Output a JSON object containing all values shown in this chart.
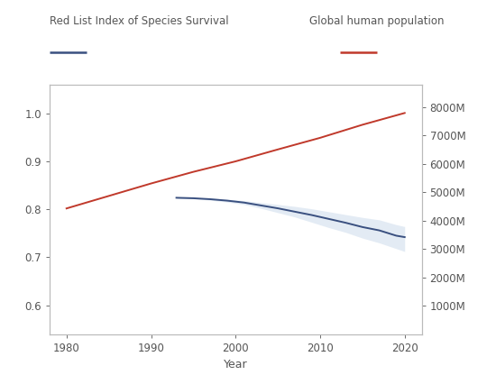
{
  "title_left": "Red List Index of Species Survival",
  "title_right": "Global human population",
  "xlabel": "Year",
  "left_color": "#3a5080",
  "right_color": "#c0392b",
  "ci_color": "#c8d8ea",
  "background_color": "#ffffff",
  "ylim_left": [
    0.54,
    1.06
  ],
  "ylim_right": [
    0,
    8800
  ],
  "xlim": [
    1978,
    2022
  ],
  "yticks_left": [
    0.6,
    0.7,
    0.8,
    0.9,
    1.0
  ],
  "yticks_right": [
    1000,
    2000,
    3000,
    4000,
    5000,
    6000,
    7000,
    8000
  ],
  "xticks": [
    1980,
    1990,
    2000,
    2010,
    2020
  ],
  "rli_years": [
    1993,
    1995,
    1997,
    1999,
    2001,
    2003,
    2005,
    2007,
    2009,
    2011,
    2013,
    2015,
    2017,
    2019,
    2020
  ],
  "rli_values": [
    0.824,
    0.823,
    0.821,
    0.818,
    0.814,
    0.808,
    0.802,
    0.795,
    0.788,
    0.78,
    0.772,
    0.763,
    0.756,
    0.745,
    0.742
  ],
  "rli_upper": [
    0.825,
    0.824,
    0.823,
    0.821,
    0.818,
    0.814,
    0.81,
    0.806,
    0.801,
    0.795,
    0.789,
    0.783,
    0.778,
    0.768,
    0.764
  ],
  "rli_lower": [
    0.823,
    0.822,
    0.819,
    0.815,
    0.81,
    0.802,
    0.793,
    0.784,
    0.773,
    0.762,
    0.752,
    0.74,
    0.73,
    0.718,
    0.712
  ],
  "pop_years": [
    1980,
    1985,
    1990,
    1995,
    2000,
    2005,
    2010,
    2015,
    2020
  ],
  "pop_values": [
    4430,
    4870,
    5310,
    5720,
    6090,
    6510,
    6920,
    7380,
    7795
  ]
}
